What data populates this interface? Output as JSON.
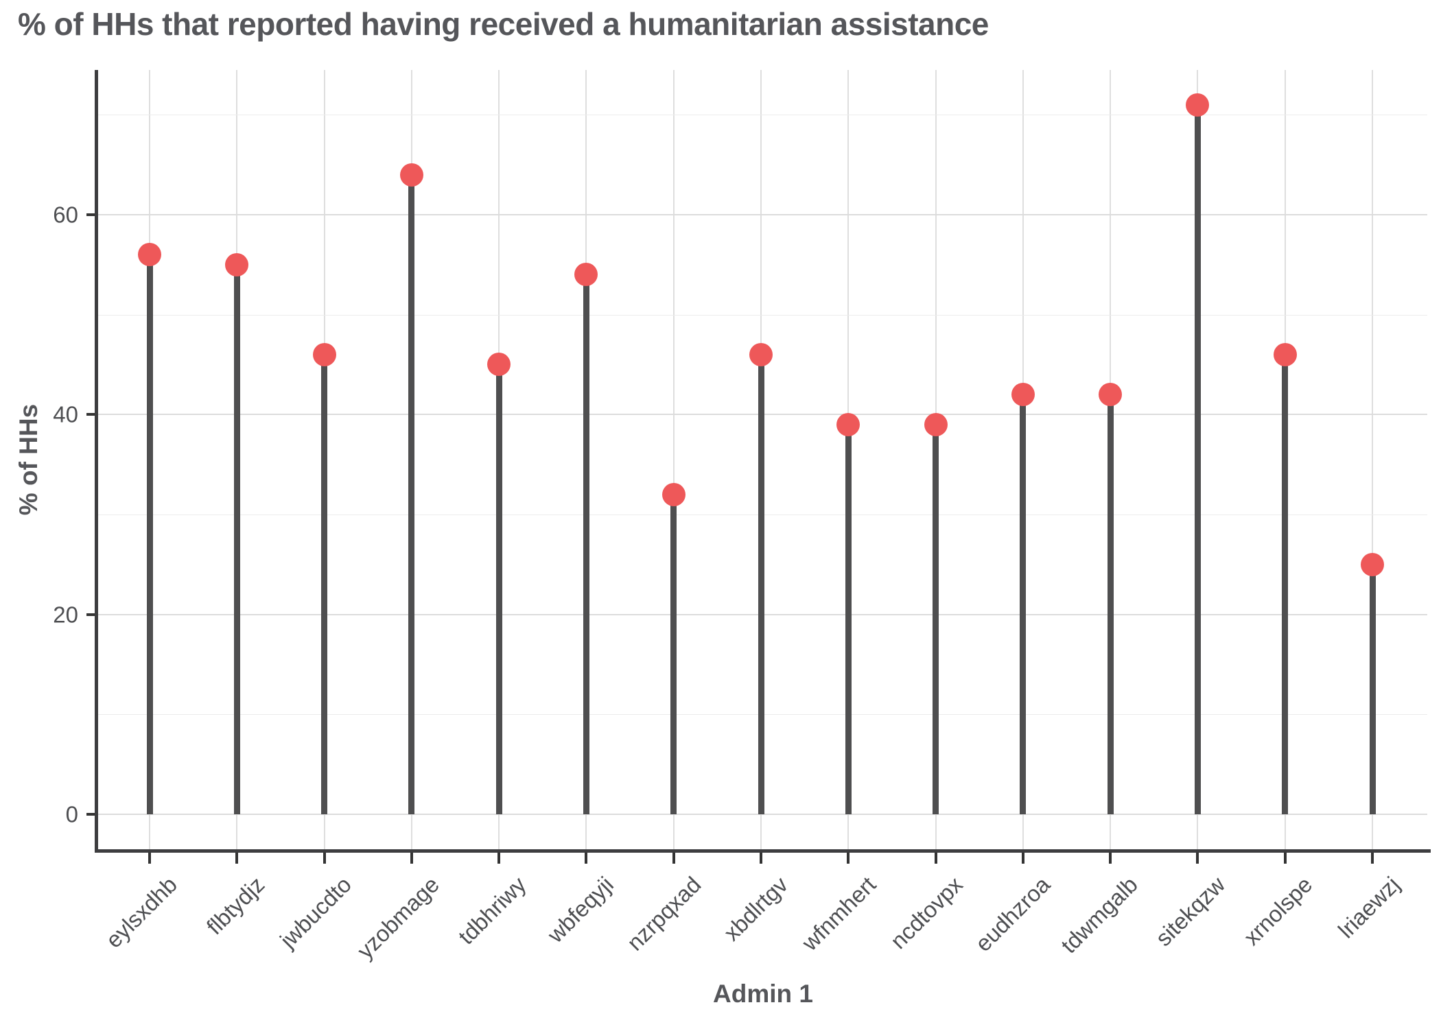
{
  "title": "% of HHs that reported having received a humanitarian assistance",
  "chart_data": {
    "type": "bar",
    "variant": "lollipop",
    "title": "% of HHs that reported having received a humanitarian assistance",
    "xlabel": "Admin 1",
    "ylabel": "% of HHs",
    "categories": [
      "eylsxdhb",
      "flbtydjz",
      "jwbucdto",
      "yzobmage",
      "tdbhriwy",
      "wbfeqyji",
      "nzrpqxad",
      "xbdlrtgv",
      "wfnmhert",
      "ncdtovpx",
      "eudhzroa",
      "tdwmgalb",
      "sitekqzw",
      "xrnolspe",
      "lriaewzj"
    ],
    "values": [
      56,
      55,
      46,
      64,
      45,
      54,
      32,
      46,
      39,
      39,
      42,
      42,
      71,
      46,
      25
    ],
    "y_ticks": [
      0,
      20,
      40,
      60
    ],
    "y_minor_ticks": [
      10,
      30,
      50,
      70
    ],
    "ylim": [
      0,
      75
    ],
    "grid": "major and minor horizontal, vertical per category",
    "legend": "none",
    "colors": {
      "dot": "#EE5859",
      "stem": "#4F4F50",
      "axis_line": "#3D3D3F",
      "grid_major": "#DCDCDC",
      "grid_minor": "#ECECEC",
      "grid_vertical": "#DEDEDE",
      "title_text": "#55565A",
      "tick_text": "#4E4F52"
    }
  }
}
